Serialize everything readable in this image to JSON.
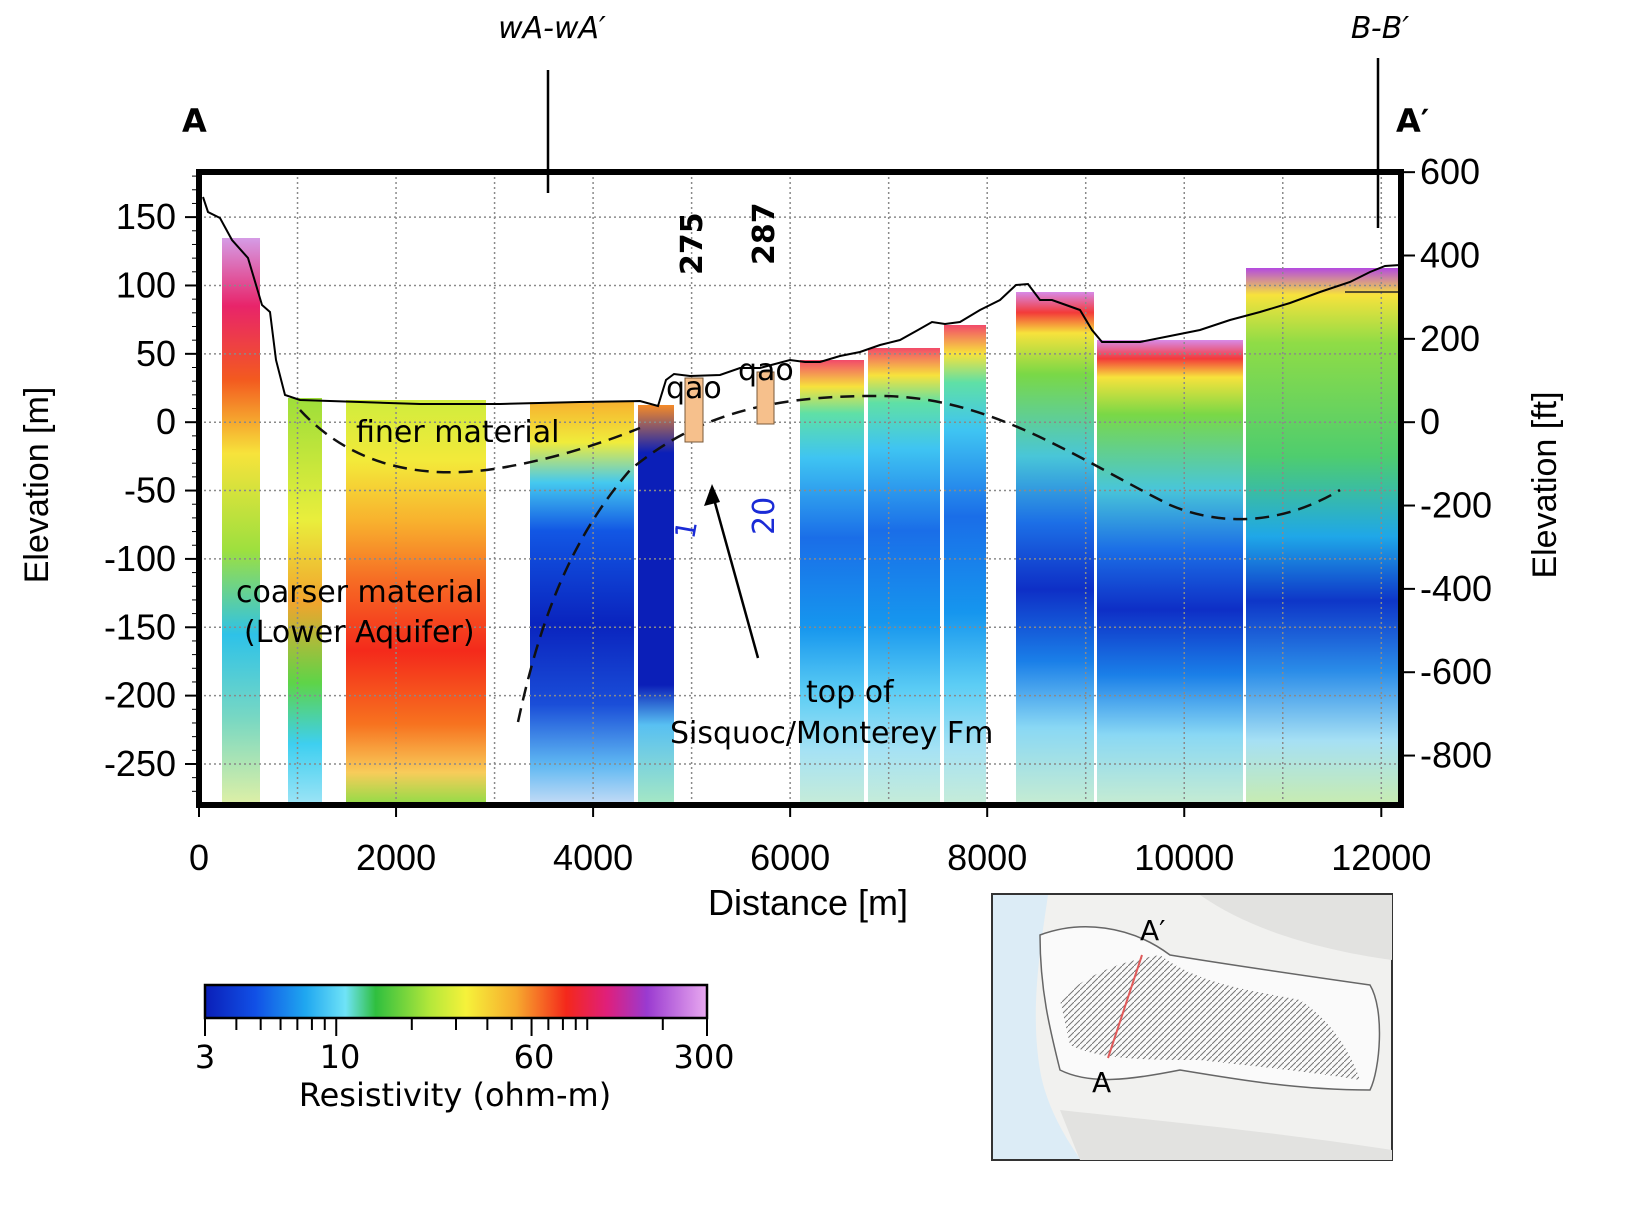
{
  "section_labels": {
    "left_end": "A",
    "right_end": "A′",
    "cross_section_1": "wA-wA′",
    "cross_section_2": "B-B′"
  },
  "axes": {
    "x_label": "Distance [m]",
    "y_left_label": "Elevation [m]",
    "y_right_label": "Elevation [ft]",
    "x_ticks": [
      "0",
      "2000",
      "4000",
      "6000",
      "8000",
      "10000",
      "12000"
    ],
    "y_left_ticks": [
      "150",
      "100",
      "50",
      "0",
      "-50",
      "-100",
      "-150",
      "-200",
      "-250"
    ],
    "y_right_ticks": [
      "600",
      "400",
      "200",
      "0",
      "-200",
      "-400",
      "-600",
      "-800"
    ],
    "x_range_m": [
      0,
      12200
    ],
    "y_range_m": [
      -280,
      183
    ]
  },
  "annotations": {
    "finer_material": "finer material",
    "coarser_1": "coarser material",
    "coarser_2": "(Lower Aquifer)",
    "top_of_1": "top of",
    "top_of_2": "Sisquoc/Monterey Fm",
    "well_275": "275",
    "well_287": "287",
    "qao_1": "qao",
    "qao_2": "qao",
    "blue_1": "1",
    "blue_20": "20"
  },
  "colorbar": {
    "title": "Resistivity (ohm-m)",
    "tick_labels": [
      "3",
      "10",
      "60",
      "300"
    ],
    "range": [
      3,
      300
    ],
    "scale": "log"
  },
  "inset_map": {
    "label_a": "A",
    "label_a_prime": "A′"
  },
  "colors": {
    "frame": "#000000",
    "blue_annotation": "#1a2bd6",
    "well_bar": "#f6c08c",
    "profile_line": "#e05a5a"
  }
}
